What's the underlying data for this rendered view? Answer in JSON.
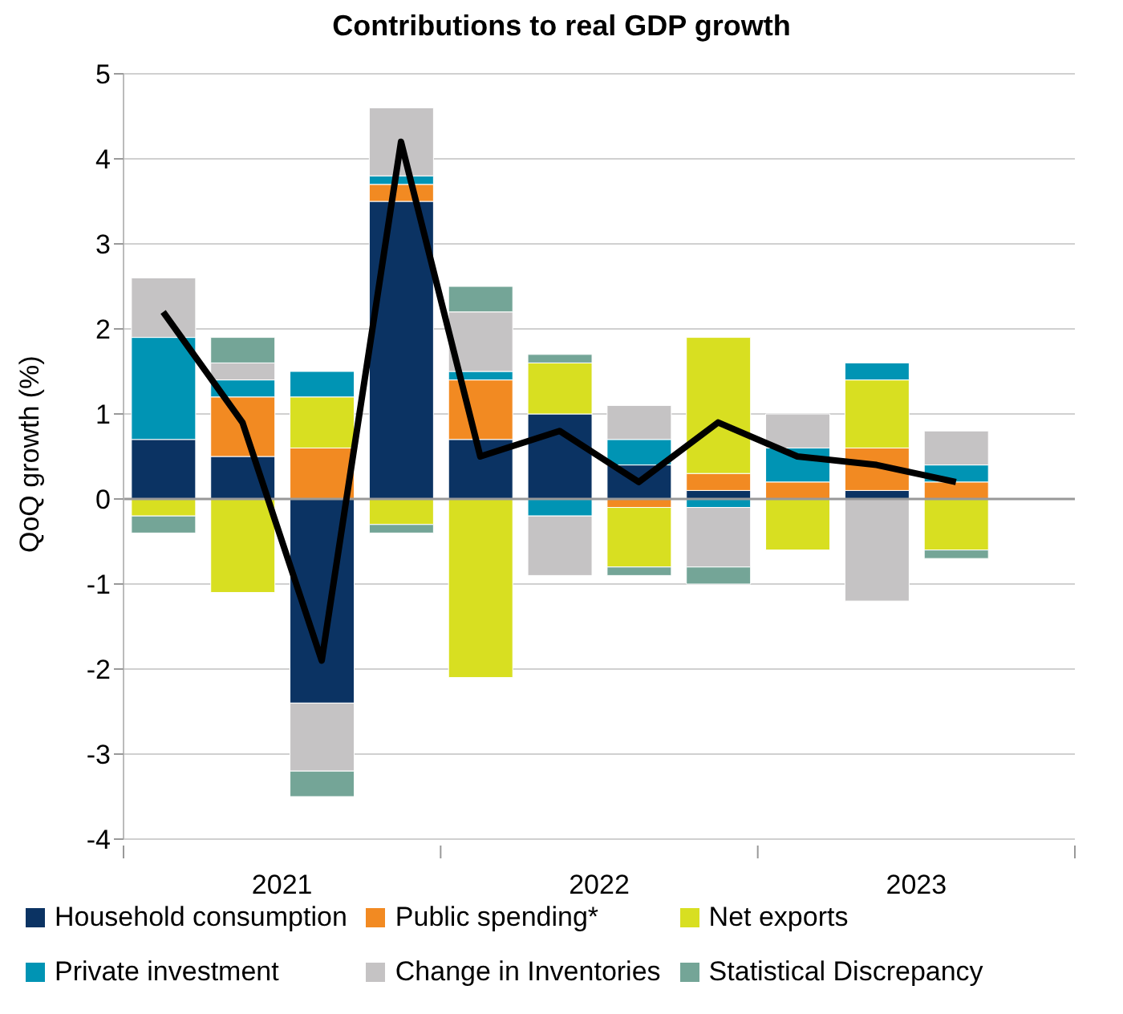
{
  "chart_data": {
    "type": "bar",
    "stacked": true,
    "title": "Contributions to real GDP growth",
    "ylabel": "QoQ growth (%)",
    "categories": [
      null,
      null,
      null,
      null,
      null,
      null,
      null,
      null,
      null,
      null,
      null,
      null
    ],
    "annotations": [
      "2021",
      "2022",
      "2023"
    ],
    "series": [
      {
        "name": "Household consumption",
        "color": "#0b3363",
        "values": [
          0.7,
          0.5,
          -2.4,
          3.5,
          0.7,
          1.0,
          0.4,
          0.1,
          0,
          0.1,
          0,
          null
        ]
      },
      {
        "name": "Public spending*",
        "color": "#f28a22",
        "values": [
          0,
          0.7,
          0.6,
          0.2,
          0.7,
          0,
          -0.1,
          0.2,
          0.2,
          0.5,
          0.2,
          null
        ]
      },
      {
        "name": "Net exports",
        "color": "#d8df21",
        "values": [
          -0.2,
          -1.1,
          0.6,
          -0.3,
          -2.1,
          0.6,
          -0.7,
          1.6,
          -0.6,
          0.8,
          -0.6,
          null
        ]
      },
      {
        "name": "Private investment",
        "color": "#0094b4",
        "values": [
          1.2,
          0.2,
          0.3,
          0.1,
          0.1,
          -0.2,
          0.3,
          -0.1,
          0.4,
          0.2,
          0.2,
          null
        ]
      },
      {
        "name": "Change in Inventories",
        "color": "#c5c3c4",
        "values": [
          0.7,
          0.2,
          -0.8,
          0.8,
          0.7,
          -0.7,
          0.4,
          -0.7,
          0.4,
          -1.2,
          0.4,
          null
        ]
      },
      {
        "name": "Statistical Discrepancy",
        "color": "#74a597",
        "values": [
          -0.2,
          0.3,
          -0.3,
          -0.1,
          0.3,
          0.1,
          -0.1,
          -0.2,
          0,
          0,
          -0.1,
          null
        ]
      },
      {
        "type": "line",
        "color": "#000000",
        "values": [
          2.2,
          0.9,
          -1.9,
          4.2,
          0.5,
          0.8,
          0.2,
          0.9,
          0.5,
          0.4,
          0.2,
          null
        ]
      }
    ],
    "ylim": [
      -4,
      5
    ],
    "yticks": [
      -4,
      -3,
      -2,
      -1,
      0,
      1,
      2,
      3,
      4,
      5
    ],
    "grid": "y",
    "legend": "bottom",
    "marker": "none",
    "ref_lines": [
      {
        "axis": "y",
        "value": 0,
        "color": "#999999"
      }
    ]
  }
}
